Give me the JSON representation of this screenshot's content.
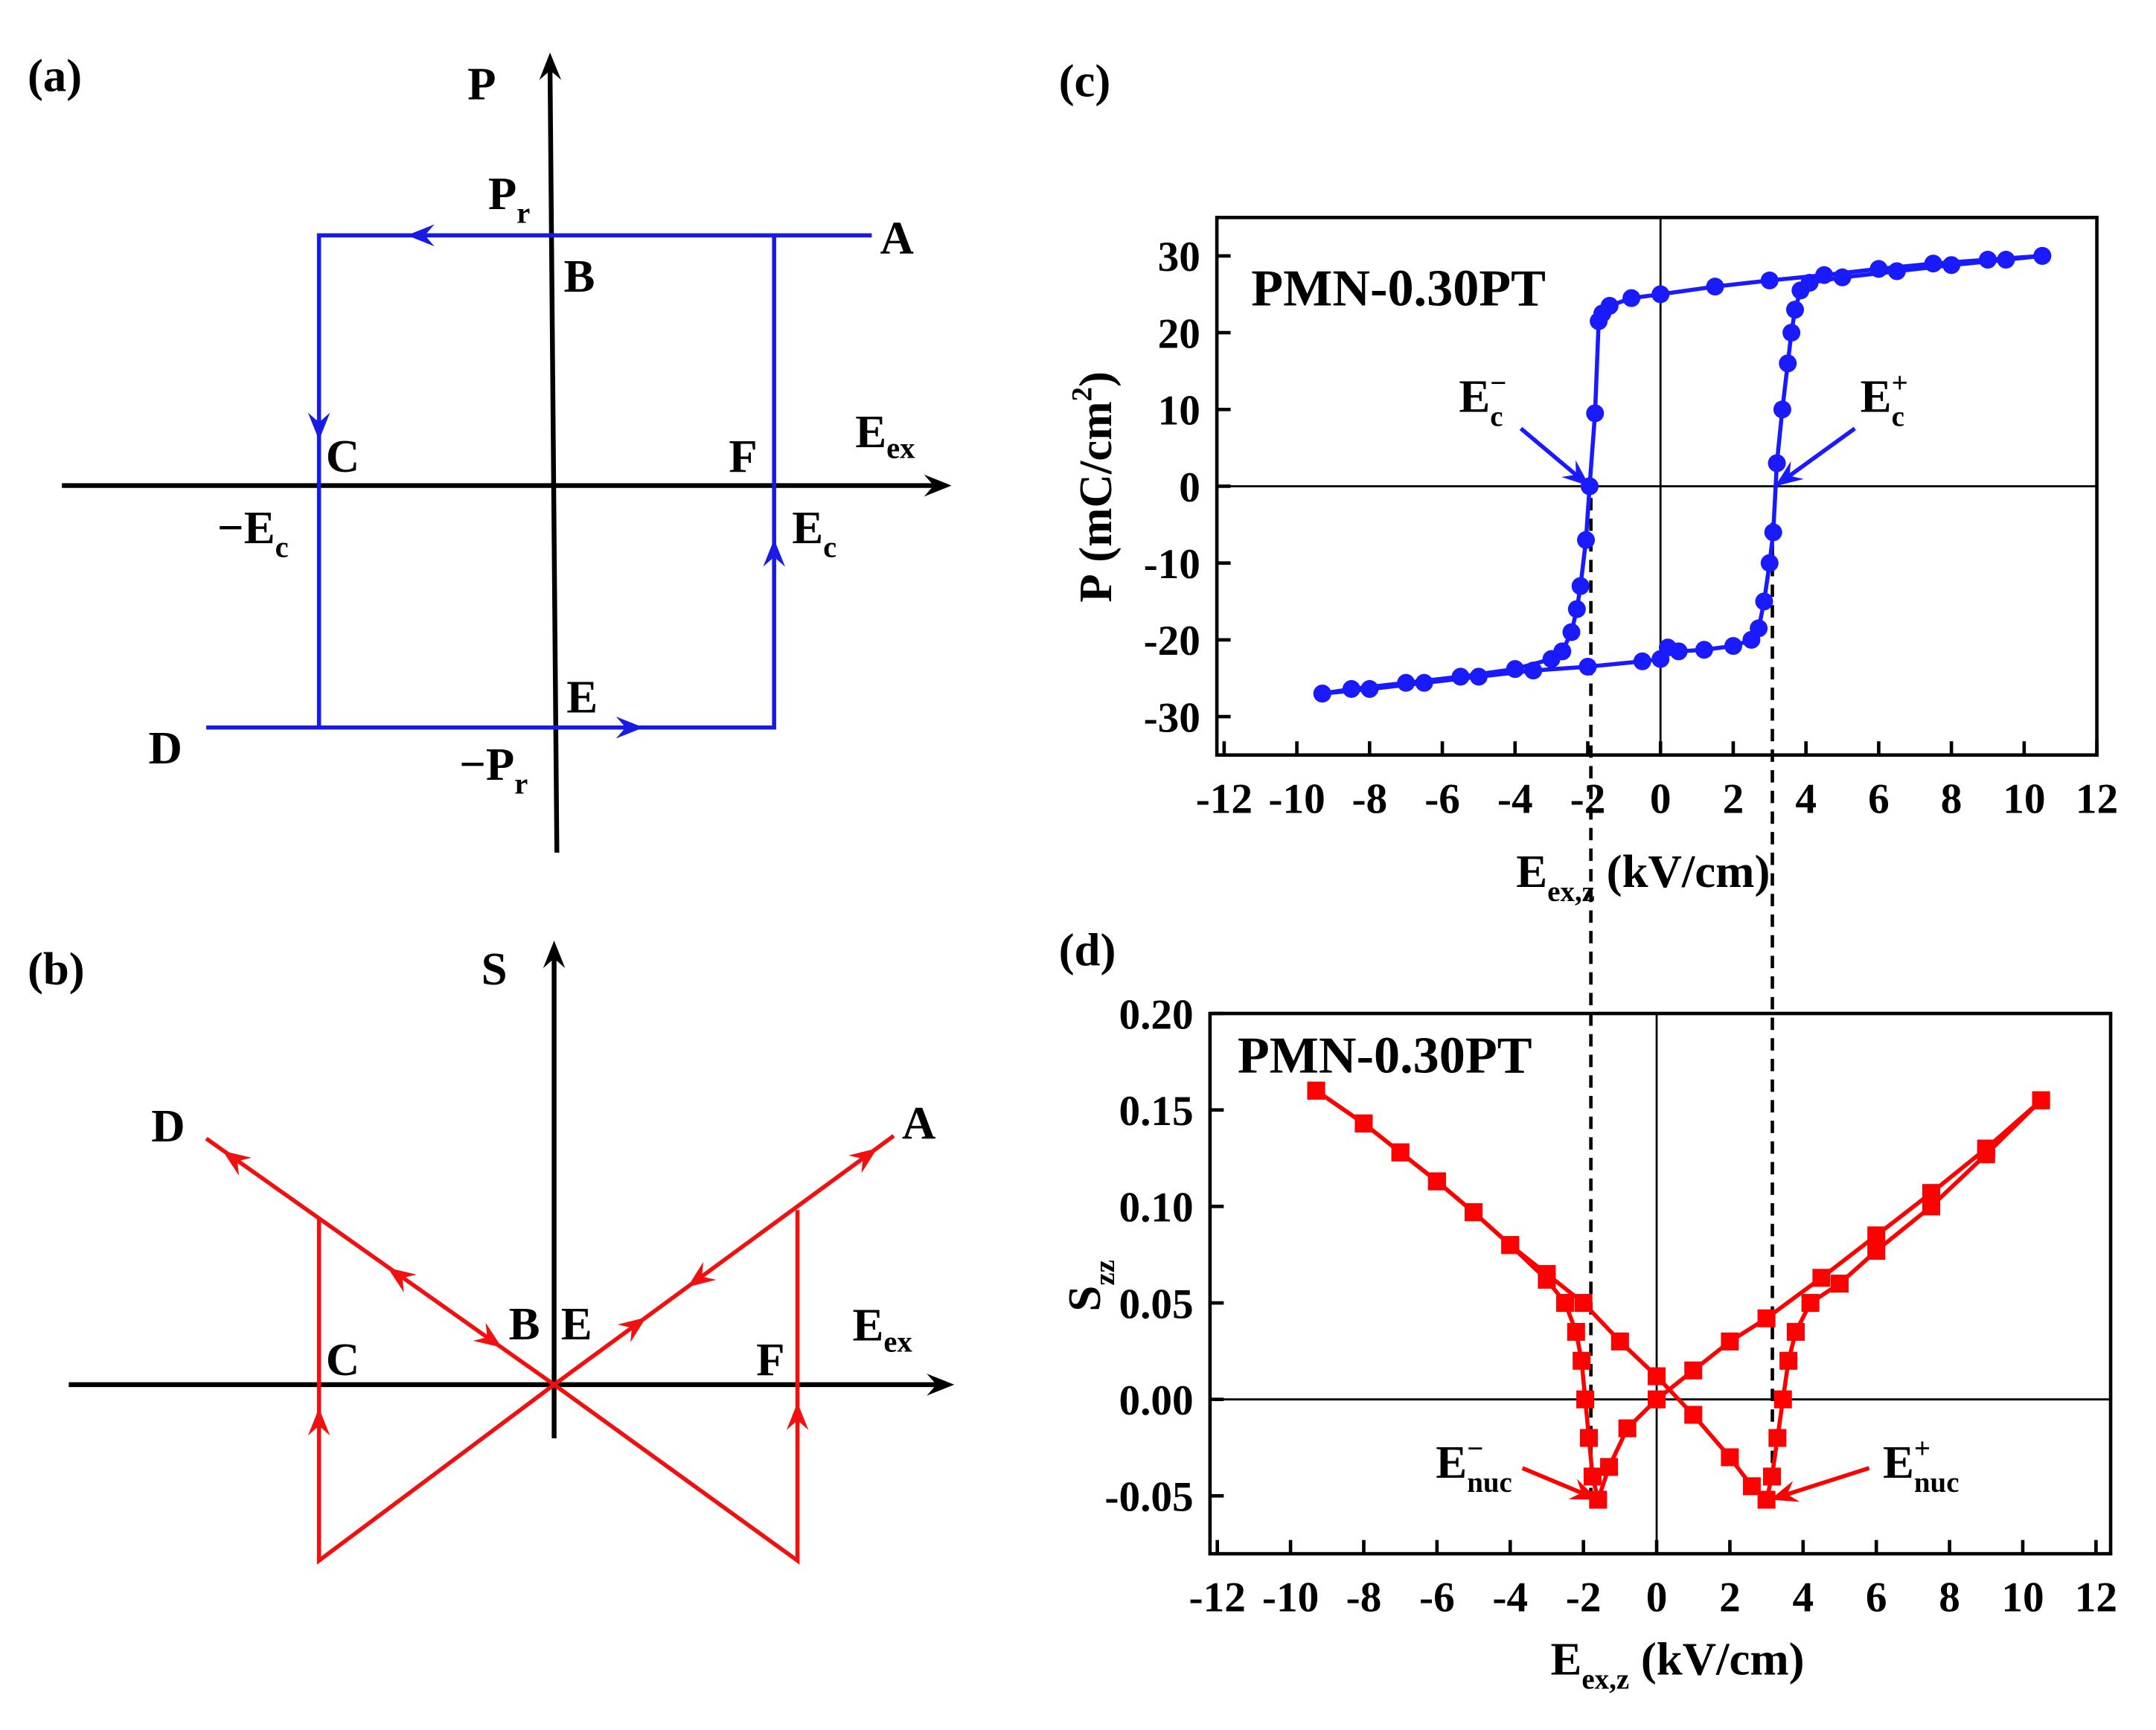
{
  "diagram_a": {
    "panel": "(a)",
    "y_axis": "P",
    "x_axis": [
      {
        "text": "E",
        "role": "base"
      },
      {
        "text": "ex",
        "role": "sub"
      }
    ],
    "pr": [
      {
        "text": "P",
        "role": "base"
      },
      {
        "text": "r",
        "role": "sub"
      }
    ],
    "neg_pr": [
      {
        "text": "−P",
        "role": "base"
      },
      {
        "text": "r",
        "role": "sub"
      }
    ],
    "neg_ec": [
      {
        "text": "−E",
        "role": "base"
      },
      {
        "text": "c",
        "role": "sub"
      }
    ],
    "ec": [
      {
        "text": "E",
        "role": "base"
      },
      {
        "text": "c",
        "role": "sub"
      }
    ],
    "points": [
      "A",
      "B",
      "C",
      "D",
      "E",
      "F"
    ]
  },
  "diagram_b": {
    "panel": "(b)",
    "y_axis": "S",
    "x_axis": [
      {
        "text": "E",
        "role": "base"
      },
      {
        "text": "ex",
        "role": "sub"
      }
    ],
    "points": [
      "A",
      "B",
      "C",
      "D",
      "E",
      "F"
    ]
  },
  "chart_data": [
    {
      "type": "scatter",
      "panel": "(c)",
      "annotation": "PMN-0.30PT",
      "marker": "circle",
      "connected": true,
      "zero_lines": true,
      "xlabel": [
        {
          "text": "E",
          "role": "base"
        },
        {
          "text": "ex,z",
          "role": "sub"
        },
        {
          "text": " (kV/cm)",
          "role": "base"
        }
      ],
      "ylabel": [
        {
          "text": "P",
          "role": "base"
        },
        {
          "text": " (mC/cm",
          "role": "base"
        },
        {
          "text": "2",
          "role": "sup"
        },
        {
          "text": ")",
          "role": "base"
        }
      ],
      "xlim": [
        -12.2,
        12
      ],
      "ylim": [
        -35,
        35
      ],
      "xticks": [
        -12,
        -10,
        -8,
        -6,
        -4,
        -2,
        0,
        2,
        4,
        6,
        8,
        10,
        12
      ],
      "yticks": [
        -30,
        -20,
        -10,
        0,
        10,
        20,
        30
      ],
      "series": [
        {
          "color": "#1a1aff",
          "x": [
            10.5,
            9,
            7.5,
            6,
            4.5,
            3,
            1.5,
            0,
            -0.8,
            -1.4,
            -1.6,
            -1.7,
            -1.8,
            -1.95,
            -2.05,
            -2.2,
            -2.3,
            -2.45,
            -2.7,
            -3,
            -4,
            -5.5,
            -7,
            -8.5,
            -9.3
          ],
          "values": [
            30,
            29.5,
            29,
            28.3,
            27.5,
            26.8,
            26,
            25,
            24.5,
            23.5,
            22.5,
            21.5,
            9.5,
            0,
            -7,
            -13,
            -16,
            -19,
            -21.5,
            -22.5,
            -23.8,
            -24.8,
            -25.6,
            -26.4,
            -27
          ]
        },
        {
          "color": "#1a1aff",
          "x": [
            -9.3,
            -8,
            -6.5,
            -5,
            -3.5,
            -2,
            -0.5,
            0,
            0.2,
            0.5,
            1.2,
            2,
            2.5,
            2.7,
            2.85,
            3.0,
            3.1,
            3.2,
            3.35,
            3.5,
            3.6,
            3.7,
            3.85,
            4.1,
            5,
            6.5,
            8,
            9.5,
            10.5
          ],
          "values": [
            -27,
            -26.4,
            -25.6,
            -24.8,
            -24,
            -23.5,
            -22.8,
            -22.5,
            -21,
            -21.5,
            -21.3,
            -20.8,
            -20,
            -18.5,
            -15,
            -10,
            -6,
            3,
            10,
            16,
            20,
            23,
            25.5,
            26.5,
            27.2,
            28,
            28.8,
            29.5,
            30
          ]
        }
      ],
      "arrows": [
        {
          "text": [
            {
              "text": "E",
              "role": "base"
            },
            {
              "text": "−",
              "role": "sup"
            },
            {
              "text": "c",
              "role": "sub"
            }
          ],
          "x": -1.95,
          "y": 0
        },
        {
          "text": [
            {
              "text": "E",
              "role": "base"
            },
            {
              "text": "+",
              "role": "sup"
            },
            {
              "text": "c",
              "role": "sub"
            }
          ],
          "x": 3.15,
          "y": 0
        }
      ]
    },
    {
      "type": "scatter",
      "panel": "(d)",
      "annotation": "PMN-0.30PT",
      "marker": "square",
      "connected": true,
      "zero_lines": true,
      "xlabel": [
        {
          "text": "E",
          "role": "base"
        },
        {
          "text": "ex,z",
          "role": "sub"
        },
        {
          "text": " (kV/cm)",
          "role": "base"
        }
      ],
      "ylabel": [
        {
          "text": "S",
          "role": "base"
        },
        {
          "text": "zz",
          "role": "sub"
        }
      ],
      "xlim": [
        -12.2,
        12.4
      ],
      "ylim": [
        -0.08,
        0.2
      ],
      "xticks": [
        -12,
        -10,
        -8,
        -6,
        -4,
        -2,
        0,
        2,
        4,
        6,
        8,
        10,
        12
      ],
      "yticks": [
        {
          "value": -0.05,
          "label": "-0.05"
        },
        {
          "value": 0,
          "label": "0.00"
        },
        {
          "value": 0.05,
          "label": "0.05"
        },
        {
          "value": 0.1,
          "label": "0.10"
        },
        {
          "value": 0.15,
          "label": "0.15"
        },
        {
          "value": 0.2,
          "label": "0.20"
        }
      ],
      "series": [
        {
          "color": "#ff0000",
          "x": [
            10.5,
            9,
            7.5,
            6,
            4.5,
            3,
            2,
            1,
            0,
            -0.8,
            -1.3,
            -1.6,
            -1.75,
            -1.85,
            -1.95,
            -2.05,
            -2.2,
            -2.5,
            -3,
            -4,
            -5,
            -6,
            -7,
            -8,
            -9.3
          ],
          "values": [
            0.155,
            0.13,
            0.107,
            0.085,
            0.063,
            0.042,
            0.03,
            0.015,
            0.0,
            -0.015,
            -0.035,
            -0.052,
            -0.04,
            -0.02,
            0.0,
            0.02,
            0.035,
            0.05,
            0.062,
            0.08,
            0.097,
            0.113,
            0.128,
            0.143,
            0.16
          ]
        },
        {
          "color": "#ff0000",
          "x": [
            -9.3,
            -8,
            -7,
            -6,
            -5,
            -4,
            -3,
            -2,
            -1,
            0,
            1,
            2,
            2.6,
            3.0,
            3.15,
            3.3,
            3.45,
            3.6,
            3.8,
            4.2,
            5,
            6,
            7.5,
            9,
            10.5
          ],
          "values": [
            0.16,
            0.143,
            0.128,
            0.113,
            0.097,
            0.08,
            0.065,
            0.05,
            0.03,
            0.012,
            -0.008,
            -0.03,
            -0.045,
            -0.052,
            -0.04,
            -0.02,
            0.0,
            0.02,
            0.035,
            0.05,
            0.06,
            0.077,
            0.1,
            0.127,
            0.155
          ]
        }
      ],
      "arrows": [
        {
          "text": [
            {
              "text": "E",
              "role": "base"
            },
            {
              "text": "−",
              "role": "sup"
            },
            {
              "text": "nuc",
              "role": "sub"
            }
          ],
          "x": -1.6,
          "y": -0.052
        },
        {
          "text": [
            {
              "text": "E",
              "role": "base"
            },
            {
              "text": "+",
              "role": "sup"
            },
            {
              "text": "nuc",
              "role": "sub"
            }
          ],
          "x": 3.1,
          "y": -0.052
        }
      ]
    }
  ]
}
